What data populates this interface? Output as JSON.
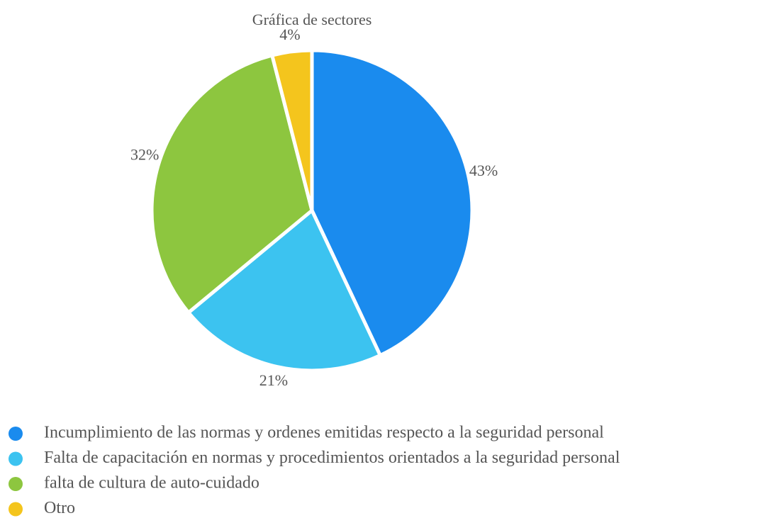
{
  "chart_data": {
    "type": "pie",
    "title": "Gráfica de sectores",
    "categories": [
      "Incumplimiento de las normas y ordenes emitidas respecto a la seguridad personal",
      "Falta de capacitación en normas y procedimientos orientados a la seguridad personal",
      "falta de cultura de auto-cuidado",
      "Otro"
    ],
    "values": [
      43,
      21,
      32,
      4
    ],
    "value_labels": [
      "43%",
      "21%",
      "32%",
      "4%"
    ],
    "colors": [
      "#1a8bee",
      "#3cc3f0",
      "#8dc63f",
      "#f4c51d"
    ]
  }
}
